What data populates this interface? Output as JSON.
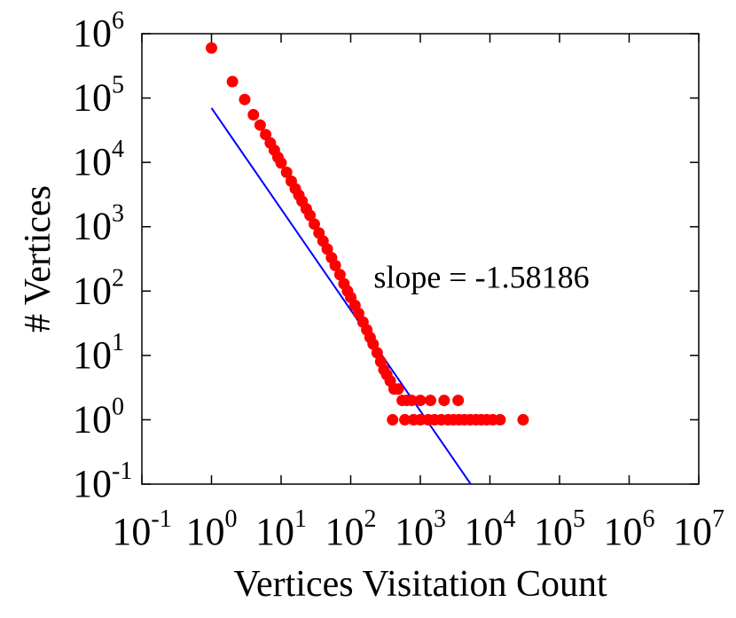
{
  "chart_data": {
    "type": "scatter",
    "title": "",
    "xlabel": "Vertices Visitation Count",
    "ylabel": "# Vertices",
    "xscale": "log",
    "yscale": "log",
    "xlim": [
      0.1,
      10000000
    ],
    "ylim": [
      0.1,
      1000000
    ],
    "x_ticks": [
      {
        "base": "10",
        "exp": "-1"
      },
      {
        "base": "10",
        "exp": "0"
      },
      {
        "base": "10",
        "exp": "1"
      },
      {
        "base": "10",
        "exp": "2"
      },
      {
        "base": "10",
        "exp": "3"
      },
      {
        "base": "10",
        "exp": "4"
      },
      {
        "base": "10",
        "exp": "5"
      },
      {
        "base": "10",
        "exp": "6"
      },
      {
        "base": "10",
        "exp": "7"
      }
    ],
    "y_ticks": [
      {
        "base": "10",
        "exp": "-1"
      },
      {
        "base": "10",
        "exp": "0"
      },
      {
        "base": "10",
        "exp": "1"
      },
      {
        "base": "10",
        "exp": "2"
      },
      {
        "base": "10",
        "exp": "3"
      },
      {
        "base": "10",
        "exp": "4"
      },
      {
        "base": "10",
        "exp": "5"
      },
      {
        "base": "10",
        "exp": "6"
      }
    ],
    "grid": false,
    "legend": "none",
    "series": [
      {
        "kind": "scatter",
        "color": "#ff0000",
        "points": [
          [
            1,
            600000
          ],
          [
            2,
            180000
          ],
          [
            3,
            95000
          ],
          [
            4,
            55000
          ],
          [
            5,
            38000
          ],
          [
            6,
            27000
          ],
          [
            7,
            20000
          ],
          [
            8,
            15500
          ],
          [
            9,
            12000
          ],
          [
            10,
            9800
          ],
          [
            12,
            7000
          ],
          [
            14,
            5100
          ],
          [
            16,
            3900
          ],
          [
            18,
            3100
          ],
          [
            20,
            2500
          ],
          [
            23,
            1900
          ],
          [
            26,
            1500
          ],
          [
            30,
            1100
          ],
          [
            35,
            800
          ],
          [
            40,
            600
          ],
          [
            46,
            450
          ],
          [
            53,
            330
          ],
          [
            60,
            250
          ],
          [
            70,
            180
          ],
          [
            80,
            130
          ],
          [
            90,
            100
          ],
          [
            100,
            80
          ],
          [
            115,
            60
          ],
          [
            130,
            45
          ],
          [
            150,
            33
          ],
          [
            170,
            25
          ],
          [
            190,
            19
          ],
          [
            210,
            15
          ],
          [
            240,
            11
          ],
          [
            270,
            8
          ],
          [
            300,
            6
          ],
          [
            330,
            5
          ],
          [
            370,
            4
          ],
          [
            420,
            3
          ],
          [
            480,
            3
          ],
          [
            550,
            2
          ],
          [
            640,
            2
          ],
          [
            750,
            2
          ],
          [
            1000,
            2
          ],
          [
            1400,
            2
          ],
          [
            2200,
            2
          ],
          [
            3500,
            2
          ],
          [
            400,
            1
          ],
          [
            600,
            1
          ],
          [
            800,
            1
          ],
          [
            1000,
            1
          ],
          [
            1300,
            1
          ],
          [
            1600,
            1
          ],
          [
            2000,
            1
          ],
          [
            2500,
            1
          ],
          [
            3000,
            1
          ],
          [
            3600,
            1
          ],
          [
            4300,
            1
          ],
          [
            5200,
            1
          ],
          [
            6300,
            1
          ],
          [
            7500,
            1
          ],
          [
            9000,
            1
          ],
          [
            11000,
            1
          ],
          [
            14000,
            1
          ],
          [
            30000,
            1
          ]
        ]
      },
      {
        "kind": "fit-line",
        "color": "#0000ff",
        "from": [
          1,
          70000
        ],
        "to": [
          5300,
          0.1
        ]
      }
    ],
    "annotations": [
      {
        "text": "slope = -1.58186",
        "x": 150,
        "y": 100
      }
    ]
  }
}
